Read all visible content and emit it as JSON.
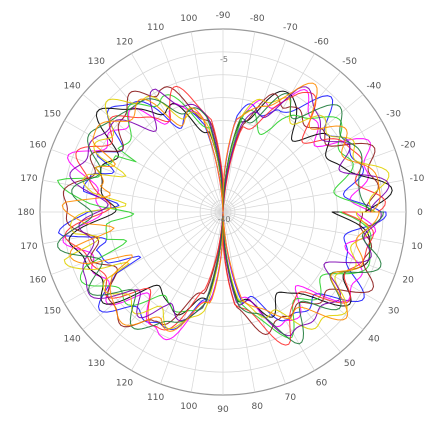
{
  "chart_data": {
    "type": "polar-line",
    "title": "",
    "angle_labels": [
      {
        "angle": -90,
        "text": "-90"
      },
      {
        "angle": -80,
        "text": "-80"
      },
      {
        "angle": -70,
        "text": "-70"
      },
      {
        "angle": -60,
        "text": "-60"
      },
      {
        "angle": -50,
        "text": "-50"
      },
      {
        "angle": -40,
        "text": "-40"
      },
      {
        "angle": -30,
        "text": "-30"
      },
      {
        "angle": -20,
        "text": "-20"
      },
      {
        "angle": -10,
        "text": "-10"
      },
      {
        "angle": 0,
        "text": "0"
      },
      {
        "angle": 10,
        "text": "10"
      },
      {
        "angle": 20,
        "text": "20"
      },
      {
        "angle": 30,
        "text": "30"
      },
      {
        "angle": 40,
        "text": "40"
      },
      {
        "angle": 50,
        "text": "50"
      },
      {
        "angle": 60,
        "text": "60"
      },
      {
        "angle": 70,
        "text": "70"
      },
      {
        "angle": 80,
        "text": "80"
      },
      {
        "angle": 90,
        "text": "90"
      },
      {
        "angle": 100,
        "text": "100"
      },
      {
        "angle": 110,
        "text": "110"
      },
      {
        "angle": 120,
        "text": "120"
      },
      {
        "angle": 130,
        "text": "130"
      },
      {
        "angle": 140,
        "text": "140"
      },
      {
        "angle": 150,
        "text": "150"
      },
      {
        "angle": 160,
        "text": "160"
      },
      {
        "angle": 170,
        "text": "170"
      },
      {
        "angle": 180,
        "text": "180"
      },
      {
        "angle": 190,
        "text": "170"
      },
      {
        "angle": 200,
        "text": "160"
      },
      {
        "angle": 210,
        "text": "150"
      },
      {
        "angle": 220,
        "text": "140"
      },
      {
        "angle": 230,
        "text": "130"
      },
      {
        "angle": 240,
        "text": "120"
      },
      {
        "angle": 250,
        "text": "110"
      },
      {
        "angle": 260,
        "text": "100"
      }
    ],
    "radial_range": [
      -40,
      0
    ],
    "radial_ticks": [
      -40,
      -35,
      -30,
      -25,
      -20,
      -15,
      -10,
      -5,
      0
    ],
    "radial_tick_labels_shown": [
      {
        "value": -5,
        "text": "-5"
      },
      {
        "value": -40,
        "text": "-40"
      }
    ],
    "grid": true,
    "legend": "none",
    "colors": {
      "grid": "#d6d6d6",
      "outer_ring": "#9a9a9a",
      "traces": [
        "#1a1aff",
        "#ff00ff",
        "#000000",
        "#2bd12b",
        "#8b1a1a",
        "#ff3030",
        "#e0d000",
        "#7b00b0",
        "#1e7a3a",
        "#ff8c00"
      ]
    },
    "series_shape": {
      "description_values_db": "Each trace is a two-lobe radiation pattern; approximate dB values at selected angles (deg): 0:-2, ±40:-5, ±90:-40 (null), 180:-3",
      "samples": [
        {
          "angle": 0,
          "db": -2
        },
        {
          "angle": 30,
          "db": -3
        },
        {
          "angle": 60,
          "db": -6
        },
        {
          "angle": 80,
          "db": -18
        },
        {
          "angle": 90,
          "db": -40
        },
        {
          "angle": 100,
          "db": -18
        },
        {
          "angle": 120,
          "db": -6
        },
        {
          "angle": 150,
          "db": -3
        },
        {
          "angle": 180,
          "db": -3
        }
      ]
    }
  }
}
